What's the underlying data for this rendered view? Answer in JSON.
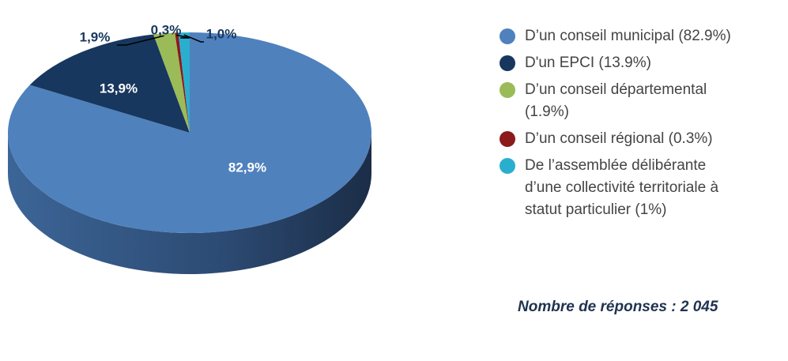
{
  "chart_data": {
    "type": "pie3d",
    "categories": [
      "D’un conseil municipal (82.9%)",
      "D'un EPCI (13.9%)",
      "D’un conseil départemental (1.9%)",
      "D’un conseil régional (0.3%)",
      "De l’assemblée délibérante d’une collectivité territoriale à statut particulier (1%)"
    ],
    "values": [
      82.9,
      13.9,
      1.9,
      0.3,
      1.0
    ],
    "value_labels": [
      "82,9%",
      "13,9%",
      "1,9%",
      "0,3%",
      "1,0%"
    ],
    "colors": [
      "#4f81bd",
      "#17375e",
      "#9bbb59",
      "#8b1a1a",
      "#2aaed0"
    ],
    "legend": "right",
    "note": "Nombre de réponses : 2 045"
  }
}
